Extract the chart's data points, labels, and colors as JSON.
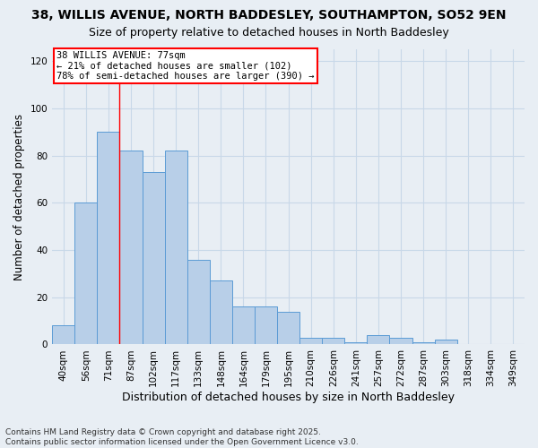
{
  "title": "38, WILLIS AVENUE, NORTH BADDESLEY, SOUTHAMPTON, SO52 9EN",
  "subtitle": "Size of property relative to detached houses in North Baddesley",
  "xlabel": "Distribution of detached houses by size in North Baddesley",
  "ylabel": "Number of detached properties",
  "categories": [
    "40sqm",
    "56sqm",
    "71sqm",
    "87sqm",
    "102sqm",
    "117sqm",
    "133sqm",
    "148sqm",
    "164sqm",
    "179sqm",
    "195sqm",
    "210sqm",
    "226sqm",
    "241sqm",
    "257sqm",
    "272sqm",
    "287sqm",
    "303sqm",
    "318sqm",
    "334sqm",
    "349sqm"
  ],
  "values": [
    8,
    60,
    90,
    82,
    73,
    82,
    36,
    27,
    16,
    16,
    14,
    3,
    3,
    1,
    4,
    3,
    1,
    2,
    0,
    0,
    0
  ],
  "bar_color": "#b8cfe8",
  "bar_edge_color": "#5b9bd5",
  "grid_color": "#c8d8e8",
  "background_color": "#e8eef4",
  "red_line_index": 2,
  "annotation_line1": "38 WILLIS AVENUE: 77sqm",
  "annotation_line2": "← 21% of detached houses are smaller (102)",
  "annotation_line3": "78% of semi-detached houses are larger (390) →",
  "ylim": [
    0,
    125
  ],
  "yticks": [
    0,
    20,
    40,
    60,
    80,
    100,
    120
  ],
  "footnote": "Contains HM Land Registry data © Crown copyright and database right 2025.\nContains public sector information licensed under the Open Government Licence v3.0.",
  "title_fontsize": 10,
  "subtitle_fontsize": 9,
  "xlabel_fontsize": 9,
  "ylabel_fontsize": 8.5,
  "tick_fontsize": 7.5,
  "annotation_fontsize": 7.5,
  "footnote_fontsize": 6.5
}
